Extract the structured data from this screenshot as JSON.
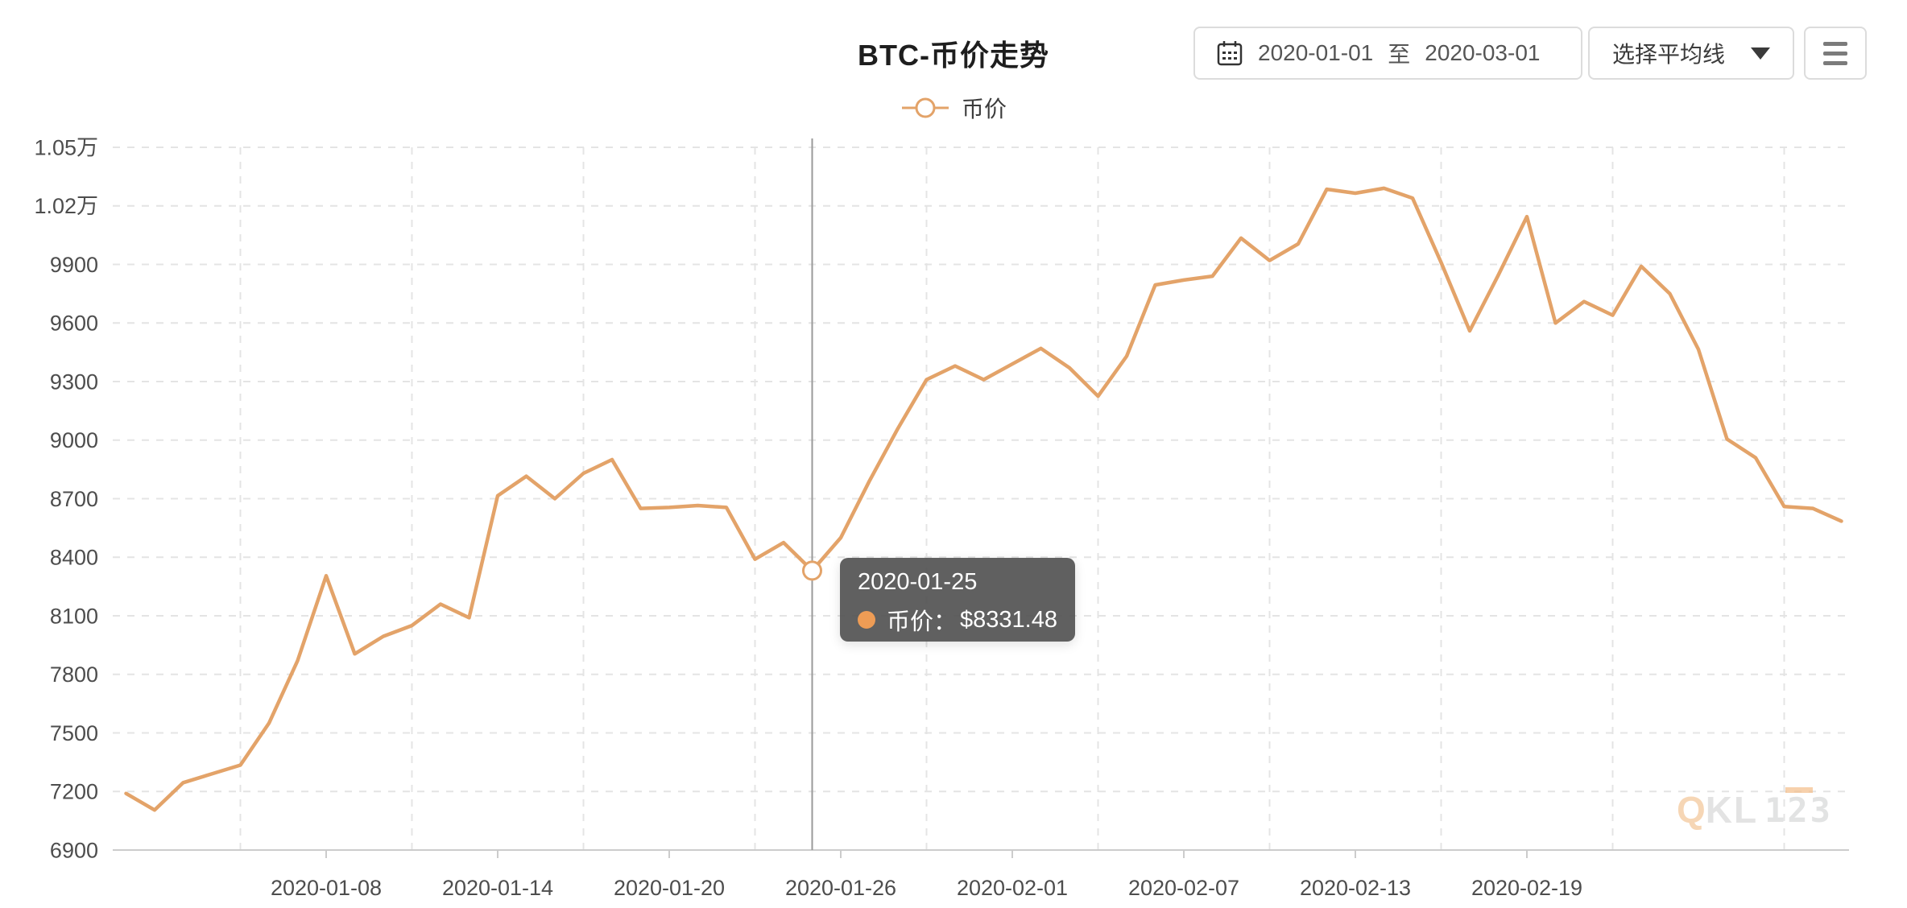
{
  "header": {
    "title": "BTC-币价走势",
    "controls": {
      "date_range": {
        "icon": "calendar-icon",
        "start": "2020-01-01",
        "separator": "至",
        "end": "2020-03-01"
      },
      "ma_select": {
        "label": "选择平均线",
        "icon": "caret-down-icon"
      },
      "menu": {
        "icon": "hamburger-icon"
      }
    }
  },
  "legend": {
    "items": [
      {
        "label": "币价",
        "marker": "line-circle",
        "color": "#E3A369"
      }
    ]
  },
  "tooltip": {
    "date": "2020-01-25",
    "rows": [
      {
        "marker_color": "#EE9C55",
        "label": "币价：",
        "value": "$8331.48"
      }
    ]
  },
  "watermark": {
    "part_q": "Q",
    "part_kl": "KL",
    "part_123": "123"
  },
  "colors": {
    "series_line": "#E3A369",
    "tooltip_dot": "#EE9C55",
    "grid": "#e4e4e4",
    "axis_line": "#cccccc",
    "axis_label": "#4d4d4d",
    "crosshair": "#9a9a9a",
    "marker_fill": "#ffffff"
  },
  "chart_data": {
    "type": "line",
    "title": "BTC-币价走势",
    "xlabel": "",
    "ylabel": "",
    "ylim": [
      6900,
      10500
    ],
    "grid": "dashed",
    "legend_position": "top",
    "x": [
      "2020-01-01",
      "2020-01-02",
      "2020-01-03",
      "2020-01-04",
      "2020-01-05",
      "2020-01-06",
      "2020-01-07",
      "2020-01-08",
      "2020-01-09",
      "2020-01-10",
      "2020-01-11",
      "2020-01-12",
      "2020-01-13",
      "2020-01-14",
      "2020-01-15",
      "2020-01-16",
      "2020-01-17",
      "2020-01-18",
      "2020-01-19",
      "2020-01-20",
      "2020-01-21",
      "2020-01-22",
      "2020-01-23",
      "2020-01-24",
      "2020-01-25",
      "2020-01-26",
      "2020-01-27",
      "2020-01-28",
      "2020-01-29",
      "2020-01-30",
      "2020-01-31",
      "2020-02-01",
      "2020-02-02",
      "2020-02-03",
      "2020-02-04",
      "2020-02-05",
      "2020-02-06",
      "2020-02-07",
      "2020-02-08",
      "2020-02-09",
      "2020-02-10",
      "2020-02-11",
      "2020-02-12",
      "2020-02-13",
      "2020-02-14",
      "2020-02-15",
      "2020-02-16",
      "2020-02-17",
      "2020-02-18",
      "2020-02-19",
      "2020-02-20",
      "2020-02-21",
      "2020-02-22",
      "2020-02-23",
      "2020-02-24",
      "2020-02-25",
      "2020-02-26",
      "2020-02-27",
      "2020-02-28",
      "2020-02-29",
      "2020-03-01"
    ],
    "series": [
      {
        "name": "币价",
        "color": "#E3A369",
        "values": [
          7190,
          7105,
          7245,
          7290,
          7335,
          7550,
          7870,
          8305,
          7905,
          7995,
          8050,
          8160,
          8090,
          8715,
          8815,
          8700,
          8830,
          8900,
          8650,
          8655,
          8665,
          8655,
          8390,
          8475,
          8331.48,
          8500,
          8790,
          9060,
          9310,
          9380,
          9310,
          9390,
          9470,
          9370,
          9225,
          9430,
          9795,
          9820,
          9840,
          10035,
          9920,
          10005,
          10285,
          10265,
          10290,
          10240,
          9910,
          9560,
          9845,
          10145,
          9600,
          9710,
          9640,
          9890,
          9750,
          9465,
          9005,
          8910,
          8660,
          8650,
          8585
        ]
      }
    ],
    "x_tick_labels": [
      "2020-01-08",
      "2020-01-14",
      "2020-01-20",
      "2020-01-26",
      "2020-02-01",
      "2020-02-07",
      "2020-02-13",
      "2020-02-19"
    ],
    "y_ticks": [
      {
        "value": 6900,
        "label": "6900"
      },
      {
        "value": 7200,
        "label": "7200"
      },
      {
        "value": 7500,
        "label": "7500"
      },
      {
        "value": 7800,
        "label": "7800"
      },
      {
        "value": 8100,
        "label": "8100"
      },
      {
        "value": 8400,
        "label": "8400"
      },
      {
        "value": 8700,
        "label": "8700"
      },
      {
        "value": 9000,
        "label": "9000"
      },
      {
        "value": 9300,
        "label": "9300"
      },
      {
        "value": 9600,
        "label": "9600"
      },
      {
        "value": 9900,
        "label": "9900"
      },
      {
        "value": 10200,
        "label": "1.02万"
      },
      {
        "value": 10500,
        "label": "1.05万"
      }
    ],
    "highlight": {
      "index": 24,
      "date": "2020-01-25",
      "value": 8331.48
    }
  }
}
